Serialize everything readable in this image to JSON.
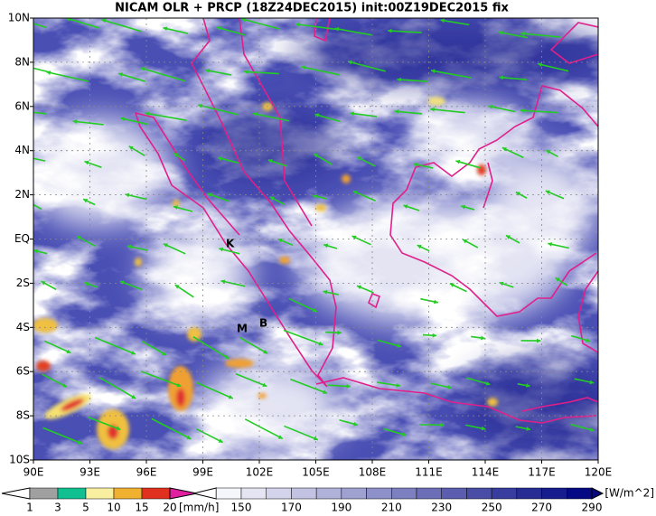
{
  "header": {
    "title": "NICAM OLR + PRCP (18Z24DEC2015) init:00Z19DEC2015 fix"
  },
  "map": {
    "x_labels": [
      "90E",
      "93E",
      "96E",
      "99E",
      "102E",
      "105E",
      "108E",
      "111E",
      "114E",
      "117E",
      "120E"
    ],
    "y_labels": [
      "10N",
      "8N",
      "6N",
      "4N",
      "2N",
      "EQ",
      "2S",
      "4S",
      "6S",
      "8S",
      "10S"
    ],
    "markers": [
      "K",
      "M",
      "B"
    ]
  },
  "legend_precip": {
    "labels": [
      "1",
      "3",
      "5",
      "10",
      "15",
      "20"
    ],
    "unit": "[mm/h]"
  },
  "legend_olr": {
    "labels": [
      "150",
      "170",
      "190",
      "210",
      "230",
      "250",
      "270",
      "290"
    ],
    "unit": "[W/m^2]"
  }
}
